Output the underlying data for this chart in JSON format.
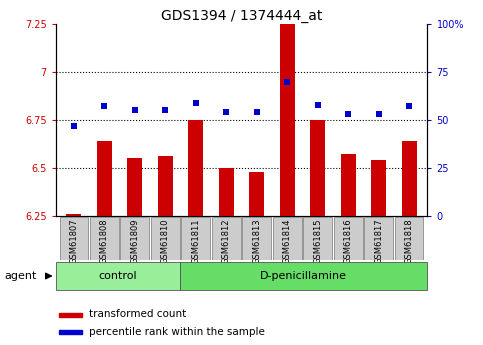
{
  "title": "GDS1394 / 1374444_at",
  "samples": [
    "GSM61807",
    "GSM61808",
    "GSM61809",
    "GSM61810",
    "GSM61811",
    "GSM61812",
    "GSM61813",
    "GSM61814",
    "GSM61815",
    "GSM61816",
    "GSM61817",
    "GSM61818"
  ],
  "transformed_count": [
    6.26,
    6.64,
    6.55,
    6.56,
    6.75,
    6.5,
    6.48,
    7.25,
    6.75,
    6.57,
    6.54,
    6.64
  ],
  "percentile_rank": [
    47,
    57,
    55,
    55,
    59,
    54,
    54,
    70,
    58,
    53,
    53,
    57
  ],
  "ylim_left": [
    6.25,
    7.25
  ],
  "ylim_right": [
    0,
    100
  ],
  "yticks_left": [
    6.25,
    6.5,
    6.75,
    7.0,
    7.25
  ],
  "yticks_right": [
    0,
    25,
    50,
    75,
    100
  ],
  "ytick_labels_left": [
    "6.25",
    "6.5",
    "6.75",
    "7",
    "7.25"
  ],
  "ytick_labels_right": [
    "0",
    "25",
    "50",
    "75",
    "100%"
  ],
  "hlines": [
    6.5,
    6.75,
    7.0
  ],
  "bar_color": "#cc0000",
  "dot_color": "#0000cc",
  "bar_width": 0.5,
  "n_control": 4,
  "n_treatment": 8,
  "control_label": "control",
  "treatment_label": "D-penicillamine",
  "agent_label": "agent",
  "legend_bar_label": "transformed count",
  "legend_dot_label": "percentile rank within the sample",
  "control_color": "#99ee99",
  "treatment_color": "#66dd66",
  "sample_box_color": "#cccccc",
  "title_fontsize": 10,
  "tick_fontsize": 7,
  "label_fontsize": 7.5,
  "agent_fontsize": 8
}
